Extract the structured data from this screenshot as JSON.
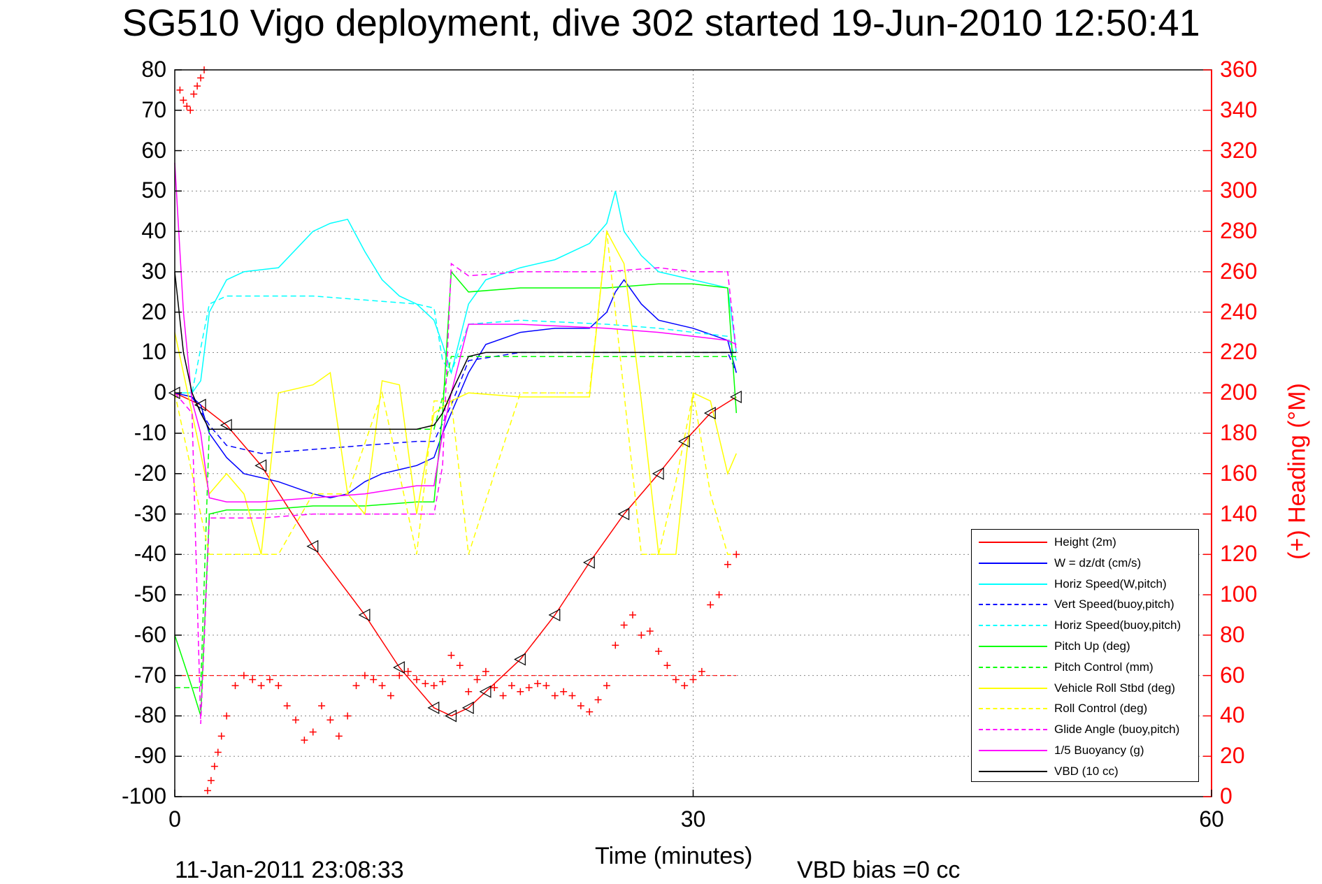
{
  "title": "SG510 Vigo deployment, dive 302 started 19-Jun-2010 12:50:41",
  "xlabel": "Time (minutes)",
  "y2label": "(+) Heading (°M)",
  "footer_left": "11-Jan-2011 23:08:33",
  "footer_right": "VBD bias =0 cc",
  "legend": [
    {
      "label": "Height (2m)",
      "color": "#ff0000",
      "dash": false
    },
    {
      "label": "W = dz/dt (cm/s)",
      "color": "#0000ff",
      "dash": false
    },
    {
      "label": "Horiz Speed(W,pitch)",
      "color": "#00ffff",
      "dash": false
    },
    {
      "label": "Vert Speed(buoy,pitch)",
      "color": "#0000ff",
      "dash": true
    },
    {
      "label": "Horiz Speed(buoy,pitch)",
      "color": "#00ffff",
      "dash": true
    },
    {
      "label": "Pitch Up (deg)",
      "color": "#00ff00",
      "dash": false
    },
    {
      "label": "Pitch Control (mm)",
      "color": "#00ff00",
      "dash": true
    },
    {
      "label": "Vehicle Roll Stbd (deg)",
      "color": "#ffff00",
      "dash": false
    },
    {
      "label": "Roll Control (deg)",
      "color": "#ffff00",
      "dash": true
    },
    {
      "label": "Glide Angle (buoy,pitch)",
      "color": "#ff00ff",
      "dash": true
    },
    {
      "label": "1/5 Buoyancy (g)",
      "color": "#ff00ff",
      "dash": false
    },
    {
      "label": "VBD (10 cc)",
      "color": "#000000",
      "dash": false
    }
  ],
  "chart_data": {
    "type": "line",
    "title": "SG510 Vigo deployment, dive 302 started 19-Jun-2010 12:50:41",
    "xlabel": "Time (minutes)",
    "ylabel": "",
    "y2label": "(+) Heading (°M)",
    "xlim": [
      0,
      60
    ],
    "ylim": [
      -100,
      80
    ],
    "y2lim": [
      0,
      360
    ],
    "xticks": [
      0,
      30,
      60
    ],
    "yticks": [
      -100,
      -90,
      -80,
      -70,
      -60,
      -50,
      -40,
      -30,
      -20,
      -10,
      0,
      10,
      20,
      30,
      40,
      50,
      60,
      70,
      80
    ],
    "y2ticks": [
      0,
      20,
      40,
      60,
      80,
      100,
      120,
      140,
      160,
      180,
      200,
      220,
      240,
      260,
      280,
      300,
      320,
      340,
      360
    ],
    "grid": "dotted",
    "legend_position": "bottom-right",
    "series": [
      {
        "name": "Height (2m)",
        "color": "#ff0000",
        "style": "solid",
        "marker": "triangle",
        "x": [
          0,
          1.5,
          3,
          5,
          8,
          11,
          13,
          15,
          16,
          17,
          18,
          20,
          22,
          24,
          26,
          28,
          29.5,
          31,
          32.5
        ],
        "y": [
          0,
          -3,
          -8,
          -18,
          -38,
          -55,
          -68,
          -78,
          -80,
          -78,
          -74,
          -66,
          -55,
          -42,
          -30,
          -20,
          -12,
          -5,
          -1
        ]
      },
      {
        "name": "W = dz/dt (cm/s)",
        "color": "#0000ff",
        "style": "solid",
        "x": [
          0,
          1,
          1.5,
          2,
          3,
          4,
          6,
          8,
          9,
          10,
          11,
          12,
          13,
          14,
          15,
          15.5,
          16,
          17,
          18,
          20,
          22,
          24,
          25,
          25.5,
          26,
          27,
          28,
          30,
          32,
          32.5
        ],
        "y": [
          0,
          -1,
          -3,
          -10,
          -16,
          -20,
          -22,
          -25,
          -26,
          -25,
          -22,
          -20,
          -19,
          -18,
          -16,
          -10,
          -5,
          5,
          12,
          15,
          16,
          16,
          20,
          25,
          28,
          22,
          18,
          16,
          13,
          5
        ]
      },
      {
        "name": "Horiz Speed(W,pitch)",
        "color": "#00ffff",
        "style": "solid",
        "x": [
          0,
          1,
          1.5,
          2,
          3,
          4,
          6,
          8,
          9,
          10,
          11,
          12,
          13,
          14,
          15,
          15.5,
          16,
          17,
          18,
          20,
          22,
          24,
          25,
          25.5,
          26,
          27,
          28,
          30,
          32,
          32.5
        ],
        "y": [
          0,
          0,
          3,
          20,
          28,
          30,
          31,
          40,
          42,
          43,
          35,
          28,
          24,
          22,
          18,
          12,
          5,
          22,
          28,
          31,
          33,
          37,
          42,
          50,
          40,
          34,
          30,
          28,
          26,
          10
        ]
      },
      {
        "name": "Vert Speed(buoy,pitch)",
        "color": "#0000ff",
        "style": "dashed",
        "x": [
          0,
          1,
          2,
          3,
          5,
          8,
          11,
          14,
          15,
          16,
          17,
          20,
          25,
          28,
          30,
          32,
          32.5
        ],
        "y": [
          0,
          -1,
          -8,
          -13,
          -15,
          -14,
          -13,
          -12,
          -12,
          -3,
          8,
          10,
          10,
          10,
          10,
          10,
          5
        ]
      },
      {
        "name": "Horiz Speed(buoy,pitch)",
        "color": "#00ffff",
        "style": "dashed",
        "x": [
          0,
          1,
          2,
          3,
          5,
          8,
          11,
          14,
          15,
          15.5,
          16,
          17,
          20,
          25,
          28,
          30,
          32,
          32.5
        ],
        "y": [
          0,
          0,
          22,
          24,
          24,
          24,
          23,
          22,
          21,
          8,
          5,
          17,
          18,
          17,
          16,
          15,
          14,
          8
        ]
      },
      {
        "name": "Pitch Up (deg)",
        "color": "#00ff00",
        "style": "solid",
        "x": [
          0,
          1,
          1.5,
          2,
          3,
          5,
          8,
          11,
          14,
          15,
          15.5,
          16,
          17,
          20,
          25,
          28,
          30,
          32,
          32.5
        ],
        "y": [
          -60,
          -73,
          -80,
          -30,
          -29,
          -29,
          -28,
          -28,
          -27,
          -27,
          -5,
          30,
          25,
          26,
          26,
          27,
          27,
          26,
          -5
        ]
      },
      {
        "name": "Pitch Control (mm)",
        "color": "#00ff00",
        "style": "dashed",
        "x": [
          0,
          1,
          1.5,
          2,
          3,
          5,
          8,
          11,
          14,
          15,
          15.5,
          16,
          17,
          20,
          25,
          28,
          30,
          32,
          32.5
        ],
        "y": [
          -73,
          -73,
          -73,
          -9,
          -9,
          -9,
          -9,
          -9,
          -9,
          -9,
          -1,
          9,
          9,
          9,
          9,
          9,
          9,
          9,
          9
        ]
      },
      {
        "name": "Vehicle Roll Stbd (deg)",
        "color": "#ffff00",
        "style": "solid",
        "x": [
          0,
          1,
          2,
          3,
          4,
          5,
          6,
          8,
          9,
          10,
          11,
          12,
          13,
          14,
          15,
          16,
          17,
          20,
          23,
          24,
          25,
          26,
          27,
          28,
          29,
          30,
          31,
          32,
          32.5
        ],
        "y": [
          15,
          -5,
          -25,
          -20,
          -25,
          -40,
          0,
          2,
          5,
          -25,
          -30,
          3,
          2,
          -30,
          -5,
          -2,
          0,
          -1,
          -1,
          -1,
          40,
          32,
          -2,
          -40,
          -40,
          0,
          -2,
          -20,
          -15
        ]
      },
      {
        "name": "Roll Control (deg)",
        "color": "#ffff00",
        "style": "dashed",
        "x": [
          0,
          1,
          2,
          3,
          5,
          6,
          8,
          10,
          12,
          14,
          15,
          16,
          17,
          20,
          24,
          25,
          26,
          27,
          28,
          29,
          30,
          31,
          32,
          32.5
        ],
        "y": [
          0,
          -20,
          -40,
          -40,
          -40,
          -40,
          -25,
          -25,
          0,
          -40,
          -2,
          -2,
          -40,
          0,
          0,
          40,
          0,
          -40,
          -40,
          -22,
          0,
          -25,
          -40,
          -40
        ]
      },
      {
        "name": "Glide Angle (buoy,pitch)",
        "color": "#ff00ff",
        "style": "dashed",
        "x": [
          0,
          1,
          1.5,
          2,
          3,
          5,
          8,
          11,
          14,
          15,
          15.5,
          16,
          17,
          20,
          25,
          28,
          30,
          32,
          32.5
        ],
        "y": [
          0,
          -5,
          -82,
          -31,
          -31,
          -31,
          -30,
          -30,
          -30,
          -30,
          -18,
          32,
          29,
          30,
          30,
          31,
          30,
          30,
          10
        ]
      },
      {
        "name": "1/5 Buoyancy (g)",
        "color": "#ff00ff",
        "style": "solid",
        "x": [
          0,
          0.5,
          1,
          1.5,
          2,
          3,
          5,
          8,
          11,
          14,
          15,
          15.5,
          16,
          17,
          20,
          25,
          28,
          30,
          32,
          32.5
        ],
        "y": [
          57,
          20,
          -2,
          -10,
          -26,
          -27,
          -27,
          -26,
          -25,
          -23,
          -23,
          -10,
          0,
          17,
          17,
          16,
          15,
          14,
          13,
          12
        ]
      },
      {
        "name": "VBD (10 cc)",
        "color": "#000000",
        "style": "solid",
        "x": [
          0,
          0.5,
          1,
          1.5,
          2,
          3,
          5,
          8,
          11,
          14,
          15,
          15.5,
          16,
          17,
          18,
          20,
          25,
          28,
          30,
          32,
          32.5
        ],
        "y": [
          30,
          10,
          0,
          -5,
          -9,
          -9,
          -9,
          -9,
          -9,
          -9,
          -8,
          -5,
          0,
          9,
          10,
          10,
          10,
          10,
          10,
          10,
          10
        ]
      },
      {
        "name": "(+) Heading (°M)",
        "color": "#ff0000",
        "style": "markers",
        "axis": "right",
        "x": [
          0.3,
          0.5,
          0.7,
          0.9,
          1.1,
          1.3,
          1.5,
          1.7,
          1.9,
          2.1,
          2.3,
          2.5,
          2.7,
          3,
          3.5,
          4,
          4.5,
          5,
          5.5,
          6,
          6.5,
          7,
          7.5,
          8,
          8.5,
          9,
          9.5,
          10,
          10.5,
          11,
          11.5,
          12,
          12.5,
          13,
          13.5,
          14,
          14.5,
          15,
          15.5,
          16,
          16.5,
          17,
          17.5,
          18,
          18.5,
          19,
          19.5,
          20,
          20.5,
          21,
          21.5,
          22,
          22.5,
          23,
          23.5,
          24,
          24.5,
          25,
          25.5,
          26,
          26.5,
          27,
          27.5,
          28,
          28.5,
          29,
          29.5,
          30,
          30.5,
          31,
          31.5,
          32,
          32.5
        ],
        "y": [
          350,
          345,
          342,
          340,
          348,
          352,
          356,
          360,
          3,
          8,
          15,
          22,
          30,
          40,
          55,
          60,
          58,
          55,
          58,
          55,
          45,
          38,
          28,
          32,
          45,
          38,
          30,
          40,
          55,
          60,
          58,
          55,
          50,
          60,
          62,
          58,
          56,
          55,
          57,
          70,
          65,
          52,
          58,
          62,
          54,
          50,
          55,
          52,
          54,
          56,
          55,
          50,
          52,
          50,
          45,
          42,
          48,
          55,
          75,
          85,
          90,
          80,
          82,
          72,
          65,
          58,
          55,
          58,
          62,
          95,
          100,
          115,
          120
        ]
      }
    ]
  }
}
